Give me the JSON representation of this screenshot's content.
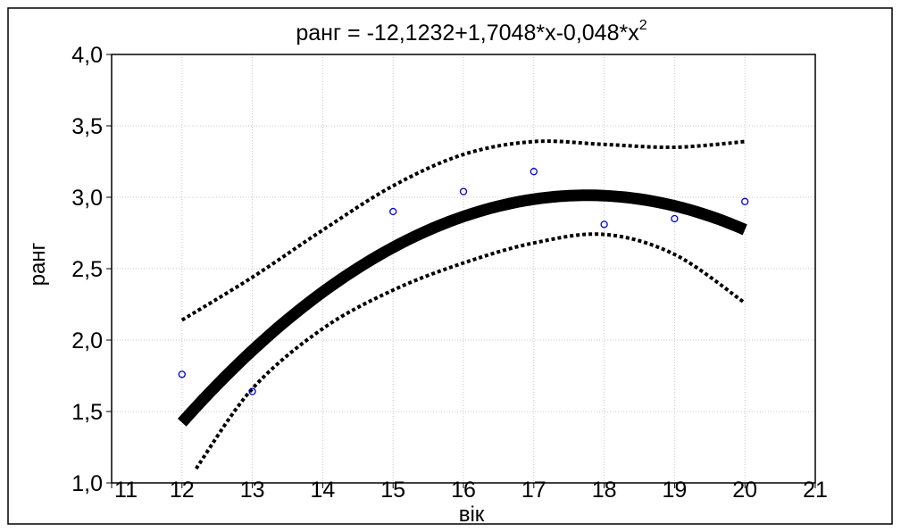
{
  "chart_data": {
    "type": "scatter",
    "title": "ранг = -12,1232+1,7048*x-0,048*x",
    "title_superscript": "2",
    "xlabel": "вік",
    "ylabel": "ранг",
    "xlim": [
      11,
      21
    ],
    "ylim": [
      1.0,
      4.0
    ],
    "x_ticks": [
      "11",
      "12",
      "13",
      "14",
      "15",
      "16",
      "17",
      "18",
      "19",
      "20",
      "21"
    ],
    "y_ticks": [
      "1,0",
      "1,5",
      "2,0",
      "2,5",
      "3,0",
      "3,5",
      "4,0"
    ],
    "grid": true,
    "points_color": "#0000cc",
    "points": [
      {
        "x": 12,
        "y": 1.76
      },
      {
        "x": 13,
        "y": 1.64
      },
      {
        "x": 15,
        "y": 2.9
      },
      {
        "x": 16,
        "y": 3.04
      },
      {
        "x": 17,
        "y": 3.18
      },
      {
        "x": 18,
        "y": 2.81
      },
      {
        "x": 19,
        "y": 2.85
      },
      {
        "x": 20,
        "y": 2.97
      }
    ],
    "fit": {
      "type": "quadratic",
      "coefficients": [
        -12.1232,
        1.7048,
        -0.048
      ],
      "x_range": [
        12,
        20
      ],
      "color": "#000000"
    },
    "confidence_upper": [
      {
        "x": 12,
        "y": 2.14
      },
      {
        "x": 13,
        "y": 2.44
      },
      {
        "x": 14,
        "y": 2.77
      },
      {
        "x": 15,
        "y": 3.08
      },
      {
        "x": 16,
        "y": 3.3
      },
      {
        "x": 17,
        "y": 3.39
      },
      {
        "x": 18,
        "y": 3.37
      },
      {
        "x": 19,
        "y": 3.35
      },
      {
        "x": 20,
        "y": 3.39
      }
    ],
    "confidence_lower": [
      {
        "x": 12.2,
        "y": 1.1
      },
      {
        "x": 13,
        "y": 1.66
      },
      {
        "x": 14,
        "y": 2.08
      },
      {
        "x": 15,
        "y": 2.35
      },
      {
        "x": 16,
        "y": 2.54
      },
      {
        "x": 17,
        "y": 2.68
      },
      {
        "x": 18,
        "y": 2.74
      },
      {
        "x": 19,
        "y": 2.6
      },
      {
        "x": 20,
        "y": 2.26
      }
    ]
  }
}
